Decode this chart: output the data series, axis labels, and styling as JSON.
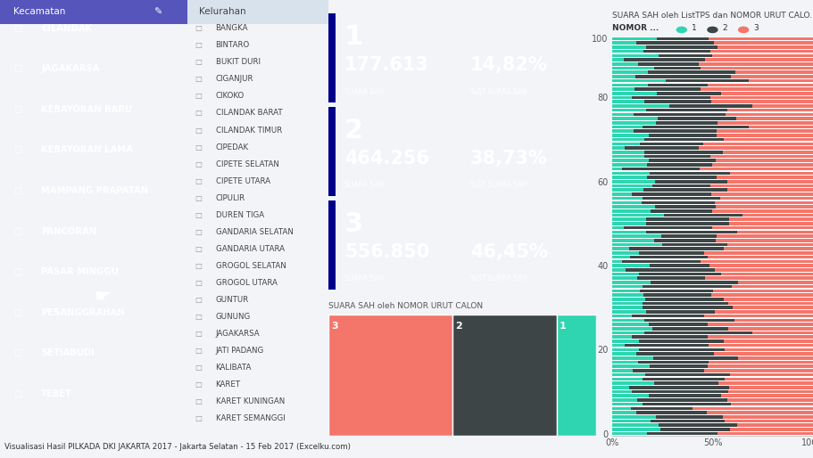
{
  "title": "Visualisasi Hasil PILKADA DKI JAKARTA 2017 - Jakarta Selatan - 15 Feb 2017 (Excelku.com)",
  "kecamatan_title": "Kecamatan",
  "kelurahan_title": "Kelurahan",
  "kecamatan_list": [
    "CILANDAK",
    "JAGAKARSA",
    "KEBAYORAN BARU",
    "KEBAYORAN LAMA",
    "MAMPANG PRAPATAN",
    "PANCORAN",
    "PASAR MINGGU",
    "PESANGGRAHAN",
    "SETIABUDI",
    "TEBET"
  ],
  "kelurahan_list": [
    "BANGKA",
    "BINTARO",
    "BUKIT DURI",
    "CIGANJUR",
    "CIKOKO",
    "CILANDAK BARAT",
    "CILANDAK TIMUR",
    "CIPEDAK",
    "CIPETE SELATAN",
    "CIPETE UTARA",
    "CIPULIR",
    "DUREN TIGA",
    "GANDARIA SELATAN",
    "GANDARIA UTARA",
    "GROGOL SELATAN",
    "GROGOL UTARA",
    "GUNTUR",
    "GUNUNG",
    "JAGAKARSA",
    "JATI PADANG",
    "KALIBATA",
    "KARET",
    "KARET KUNINGAN",
    "KARET SEMANGGI"
  ],
  "candidate1": {
    "number": "1",
    "suara_sah": "177.613",
    "pct": "14,82%"
  },
  "candidate2": {
    "number": "2",
    "suara_sah": "464.256",
    "pct": "38,73%"
  },
  "candidate3": {
    "number": "3",
    "suara_sah": "556.850",
    "pct": "46,45%"
  },
  "card_bg": "#0000EE",
  "card_stripe": "#00008B",
  "treemap_colors": [
    "#F4756A",
    "#3D4546",
    "#2ED5B0"
  ],
  "chart_title": "SUARA SAH oleh ListTPS dan NOMOR URUT CALO...",
  "chart_subtitle": "SUARA SAH oleh NOMOR URUT CALON",
  "legend_labels": [
    "1",
    "2",
    "3"
  ],
  "legend_colors": [
    "#2ED5B0",
    "#3D4546",
    "#F4756A"
  ],
  "bar_color1": "#2ED5B0",
  "bar_color2": "#3D4546",
  "bar_color3": "#F4756A",
  "n_bars": 95,
  "kecamatan_bg": "#7070CC",
  "kelurahan_bg": "#E8EEF4",
  "main_bg": "#F2F4F8",
  "footer_bg": "#C8D0DC",
  "v1": 0.1482,
  "v2": 0.3873,
  "v3": 0.4645,
  "p1_base": 0.1482,
  "p2_base": 0.3873,
  "p3_base": 0.4645
}
